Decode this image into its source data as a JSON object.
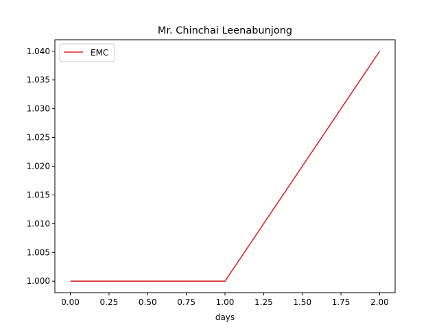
{
  "chart_data": {
    "type": "line",
    "title": "Mr. Chinchai Leenabunjong",
    "xlabel": "days",
    "ylabel": "",
    "x": [
      0,
      1,
      2
    ],
    "series": [
      {
        "name": "EMC",
        "values": [
          1.0,
          1.0,
          1.04
        ],
        "color": "#d62728"
      }
    ],
    "xlim": [
      -0.1,
      2.1
    ],
    "ylim": [
      0.998,
      1.042
    ],
    "xticks": [
      0.0,
      0.25,
      0.5,
      0.75,
      1.0,
      1.25,
      1.5,
      1.75,
      2.0
    ],
    "xtick_labels": [
      "0.00",
      "0.25",
      "0.50",
      "0.75",
      "1.00",
      "1.25",
      "1.50",
      "1.75",
      "2.00"
    ],
    "yticks": [
      1.0,
      1.005,
      1.01,
      1.015,
      1.02,
      1.025,
      1.03,
      1.035,
      1.04
    ],
    "ytick_labels": [
      "1.000",
      "1.005",
      "1.010",
      "1.015",
      "1.020",
      "1.025",
      "1.030",
      "1.035",
      "1.040"
    ],
    "grid": false,
    "legend_position": "top-left"
  }
}
